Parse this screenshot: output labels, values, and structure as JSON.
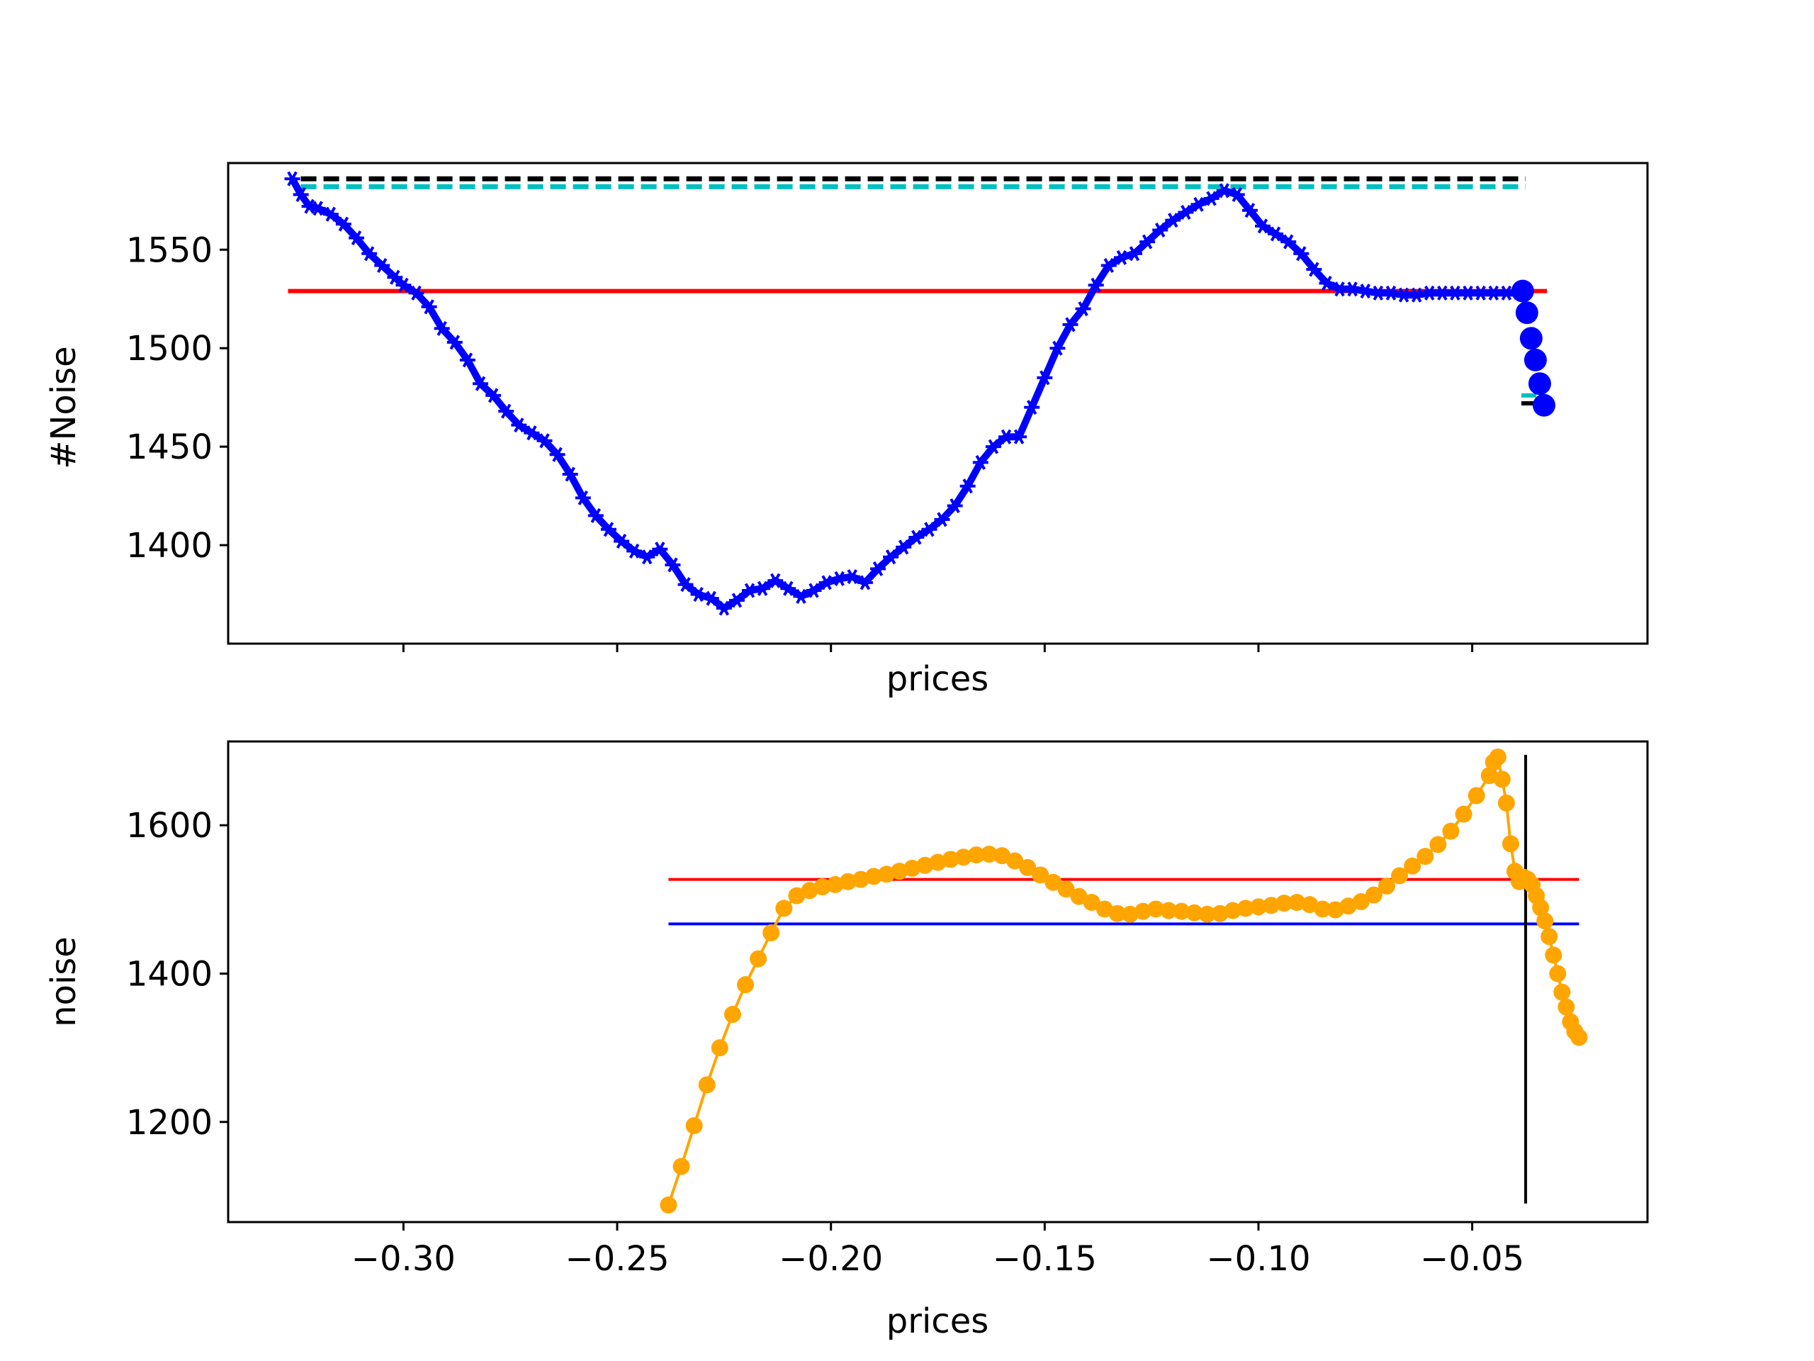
{
  "figure": {
    "layout": "2 rows, shared x-axis"
  },
  "chart_data": [
    {
      "type": "line",
      "panel": "top",
      "xlabel": "prices",
      "ylabel": "#Noise",
      "xlim": [
        -0.341,
        -0.009
      ],
      "ylim": [
        1350,
        1594
      ],
      "grid": false,
      "xticks": [
        -0.3,
        -0.25,
        -0.2,
        -0.15,
        -0.1,
        -0.05
      ],
      "xtick_labels_visible": false,
      "yticks": [
        1400,
        1450,
        1500,
        1550
      ],
      "ytick_labels": [
        "1400",
        "1450",
        "1500",
        "1550"
      ],
      "series": [
        {
          "style": "line-with-star-markers",
          "color": "#0000ff",
          "x": [
            -0.326,
            -0.324,
            -0.322,
            -0.32,
            -0.317,
            -0.314,
            -0.311,
            -0.308,
            -0.305,
            -0.302,
            -0.3,
            -0.297,
            -0.294,
            -0.291,
            -0.288,
            -0.285,
            -0.282,
            -0.279,
            -0.276,
            -0.273,
            -0.27,
            -0.267,
            -0.264,
            -0.261,
            -0.258,
            -0.255,
            -0.252,
            -0.249,
            -0.246,
            -0.243,
            -0.24,
            -0.237,
            -0.234,
            -0.231,
            -0.228,
            -0.225,
            -0.222,
            -0.219,
            -0.216,
            -0.213,
            -0.21,
            -0.207,
            -0.204,
            -0.201,
            -0.198,
            -0.195,
            -0.192,
            -0.189,
            -0.186,
            -0.183,
            -0.18,
            -0.177,
            -0.174,
            -0.171,
            -0.168,
            -0.165,
            -0.162,
            -0.159,
            -0.156,
            -0.153,
            -0.15,
            -0.147,
            -0.144,
            -0.141,
            -0.138,
            -0.135,
            -0.132,
            -0.129,
            -0.126,
            -0.123,
            -0.12,
            -0.117,
            -0.114,
            -0.111,
            -0.108,
            -0.105,
            -0.102,
            -0.099,
            -0.096,
            -0.093,
            -0.09,
            -0.087,
            -0.084,
            -0.081,
            -0.078,
            -0.075,
            -0.072,
            -0.069,
            -0.066,
            -0.063,
            -0.06,
            -0.057,
            -0.054,
            -0.051,
            -0.048,
            -0.045,
            -0.042,
            -0.039
          ],
          "y": [
            1586,
            1578,
            1572,
            1571,
            1568,
            1563,
            1556,
            1548,
            1542,
            1536,
            1532,
            1528,
            1521,
            1510,
            1503,
            1494,
            1482,
            1476,
            1468,
            1461,
            1457,
            1453,
            1446,
            1436,
            1424,
            1415,
            1408,
            1402,
            1397,
            1394,
            1398,
            1390,
            1380,
            1375,
            1373,
            1368,
            1372,
            1377,
            1378,
            1382,
            1378,
            1374,
            1377,
            1381,
            1383,
            1384,
            1381,
            1388,
            1394,
            1399,
            1404,
            1408,
            1413,
            1420,
            1430,
            1442,
            1450,
            1455,
            1455,
            1470,
            1485,
            1500,
            1512,
            1520,
            1532,
            1542,
            1546,
            1548,
            1554,
            1560,
            1565,
            1569,
            1573,
            1576,
            1580,
            1578,
            1570,
            1562,
            1558,
            1554,
            1548,
            1540,
            1533,
            1530,
            1530,
            1529,
            1528,
            1528,
            1527,
            1527,
            1528,
            1528,
            1528,
            1528,
            1528,
            1528,
            1528,
            1528
          ]
        },
        {
          "style": "large-dot-markers",
          "color": "#0000ff",
          "x": [
            -0.0382,
            -0.0372,
            -0.0362,
            -0.0352,
            -0.0342,
            -0.0332
          ],
          "y": [
            1529,
            1518,
            1505,
            1494,
            1482,
            1471
          ]
        }
      ],
      "hlines": [
        {
          "y": 1586,
          "xmin": -0.324,
          "xmax": -0.0375,
          "color": "#000000",
          "style": "dashed"
        },
        {
          "y": 1582,
          "xmin": -0.324,
          "xmax": -0.0375,
          "color": "#00bfbf",
          "style": "dashed"
        },
        {
          "y": 1529,
          "xmin": -0.327,
          "xmax": -0.0325,
          "color": "#ff0000",
          "style": "solid"
        },
        {
          "y": 1476,
          "xmin": -0.0385,
          "xmax": -0.035,
          "color": "#00bfbf",
          "style": "solid"
        },
        {
          "y": 1472,
          "xmin": -0.0385,
          "xmax": -0.035,
          "color": "#000000",
          "style": "solid"
        }
      ]
    },
    {
      "type": "line",
      "panel": "bottom",
      "xlabel": "prices",
      "ylabel": "noise",
      "xlim": [
        -0.341,
        -0.009
      ],
      "ylim": [
        1065,
        1713
      ],
      "grid": false,
      "xticks": [
        -0.3,
        -0.25,
        -0.2,
        -0.15,
        -0.1,
        -0.05
      ],
      "xtick_labels": [
        "−0.30",
        "−0.25",
        "−0.20",
        "−0.15",
        "−0.10",
        "−0.05"
      ],
      "yticks": [
        1200,
        1400,
        1600
      ],
      "ytick_labels": [
        "1200",
        "1400",
        "1600"
      ],
      "series": [
        {
          "style": "line-with-dot-markers",
          "color": "#ffa500",
          "x": [
            -0.238,
            -0.235,
            -0.232,
            -0.229,
            -0.226,
            -0.223,
            -0.22,
            -0.217,
            -0.214,
            -0.211,
            -0.208,
            -0.205,
            -0.202,
            -0.199,
            -0.196,
            -0.193,
            -0.19,
            -0.187,
            -0.184,
            -0.181,
            -0.178,
            -0.175,
            -0.172,
            -0.169,
            -0.166,
            -0.163,
            -0.16,
            -0.157,
            -0.154,
            -0.151,
            -0.148,
            -0.145,
            -0.142,
            -0.139,
            -0.136,
            -0.133,
            -0.13,
            -0.127,
            -0.124,
            -0.121,
            -0.118,
            -0.115,
            -0.112,
            -0.109,
            -0.106,
            -0.103,
            -0.1,
            -0.097,
            -0.094,
            -0.091,
            -0.088,
            -0.085,
            -0.082,
            -0.079,
            -0.076,
            -0.073,
            -0.07,
            -0.067,
            -0.064,
            -0.061,
            -0.058,
            -0.055,
            -0.052,
            -0.049,
            -0.046,
            -0.045,
            -0.044,
            -0.043,
            -0.042,
            -0.041,
            -0.04,
            -0.039,
            -0.038,
            -0.037,
            -0.036,
            -0.035,
            -0.034,
            -0.033,
            -0.032,
            -0.031,
            -0.03,
            -0.029,
            -0.028,
            -0.027,
            -0.026,
            -0.025
          ],
          "y": [
            1088,
            1140,
            1195,
            1250,
            1300,
            1345,
            1385,
            1420,
            1455,
            1488,
            1505,
            1512,
            1517,
            1520,
            1524,
            1527,
            1531,
            1534,
            1538,
            1542,
            1546,
            1550,
            1554,
            1557,
            1560,
            1561,
            1559,
            1552,
            1543,
            1533,
            1523,
            1514,
            1504,
            1496,
            1487,
            1481,
            1480,
            1484,
            1487,
            1485,
            1484,
            1482,
            1480,
            1481,
            1485,
            1488,
            1490,
            1492,
            1495,
            1496,
            1493,
            1487,
            1486,
            1491,
            1497,
            1506,
            1518,
            1532,
            1545,
            1558,
            1574,
            1592,
            1615,
            1640,
            1667,
            1685,
            1692,
            1662,
            1630,
            1575,
            1538,
            1524,
            1530,
            1527,
            1520,
            1505,
            1489,
            1471,
            1450,
            1425,
            1400,
            1375,
            1355,
            1335,
            1322,
            1314
          ]
        }
      ],
      "hlines": [
        {
          "y": 1527,
          "xmin": -0.238,
          "xmax": -0.025,
          "color": "#ff0000",
          "style": "solid"
        },
        {
          "y": 1467,
          "xmin": -0.238,
          "xmax": -0.025,
          "color": "#0000ff",
          "style": "solid"
        }
      ],
      "vlines": [
        {
          "x": -0.0375,
          "ymin": 1090,
          "ymax": 1695,
          "color": "#000000",
          "style": "solid"
        }
      ]
    }
  ]
}
